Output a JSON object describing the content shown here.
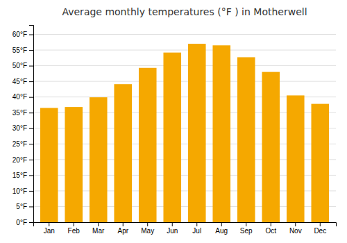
{
  "chart_data": {
    "type": "bar",
    "title": "Average monthly temperatures (°F ) in Motherwell",
    "categories": [
      "Jan",
      "Feb",
      "Mar",
      "Apr",
      "May",
      "Jun",
      "Jul",
      "Aug",
      "Sep",
      "Oct",
      "Nov",
      "Dec"
    ],
    "values": [
      36.5,
      36.8,
      39.9,
      44.1,
      49.3,
      54.2,
      57.0,
      56.5,
      52.7,
      48.0,
      40.5,
      37.8
    ],
    "color": "#F5A800",
    "ylim": [
      0,
      63
    ],
    "yticks": [
      {
        "value": 0,
        "label": "0°F"
      },
      {
        "value": 5,
        "label": "5°F"
      },
      {
        "value": 10,
        "label": "10°F"
      },
      {
        "value": 15,
        "label": "15°F"
      },
      {
        "value": 20,
        "label": "20°F"
      },
      {
        "value": 25,
        "label": "25°F"
      },
      {
        "value": 30,
        "label": "30°F"
      },
      {
        "value": 35,
        "label": "35°F"
      },
      {
        "value": 40,
        "label": "40°F"
      },
      {
        "value": 45,
        "label": "45°F"
      },
      {
        "value": 50,
        "label": "50°F"
      },
      {
        "value": 55,
        "label": "55°F"
      },
      {
        "value": 60,
        "label": "60°F"
      }
    ],
    "grid": true
  }
}
